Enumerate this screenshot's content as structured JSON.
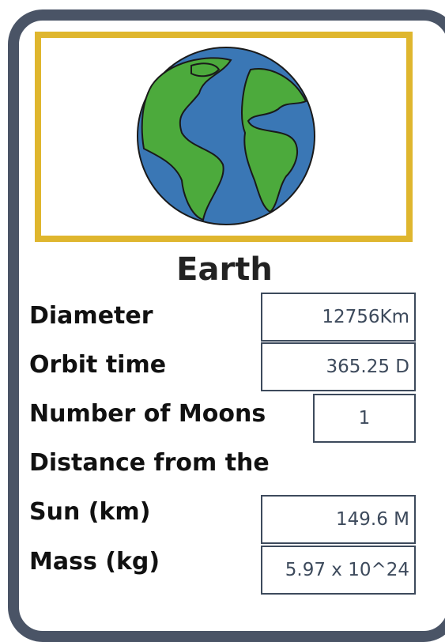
{
  "card": {
    "title": "Earth",
    "rows": [
      {
        "label": "Diameter",
        "value": "12756Km"
      },
      {
        "label": "Orbit time",
        "value": "365.25 D"
      },
      {
        "label": "Number of Moons",
        "value": "1"
      },
      {
        "label": "Distance from the"
      },
      {
        "label": "Sun (km)",
        "value": "149.6 M"
      },
      {
        "label": "Mass (kg)",
        "value": "5.97 x 10^24"
      }
    ]
  }
}
